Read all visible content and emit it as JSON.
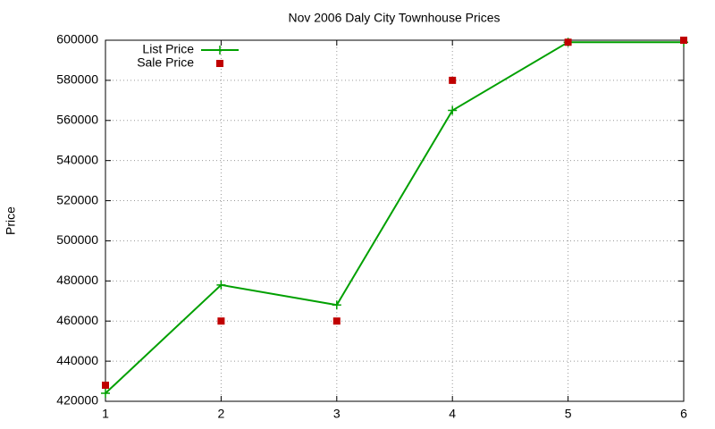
{
  "chart_data": {
    "type": "line",
    "title": "Nov 2006 Daly City Townhouse Prices",
    "y_label": "Price",
    "x": [
      1,
      2,
      3,
      4,
      5,
      6
    ],
    "series": [
      {
        "name": "List Price",
        "color": "#00a000",
        "style": "linespoints",
        "values": [
          424000,
          478000,
          468000,
          565000,
          599000,
          599000
        ]
      },
      {
        "name": "Sale Price",
        "color": "#c00000",
        "style": "points",
        "values": [
          428000,
          460000,
          460000,
          580000,
          599000,
          600000
        ]
      }
    ],
    "xlim": [
      1,
      6
    ],
    "xticks": [
      1,
      2,
      3,
      4,
      5,
      6
    ],
    "ylim": [
      420000,
      600000
    ],
    "yticks": [
      420000,
      440000,
      460000,
      480000,
      500000,
      520000,
      540000,
      560000,
      580000,
      600000
    ],
    "grid": true,
    "legend": "top-left"
  }
}
